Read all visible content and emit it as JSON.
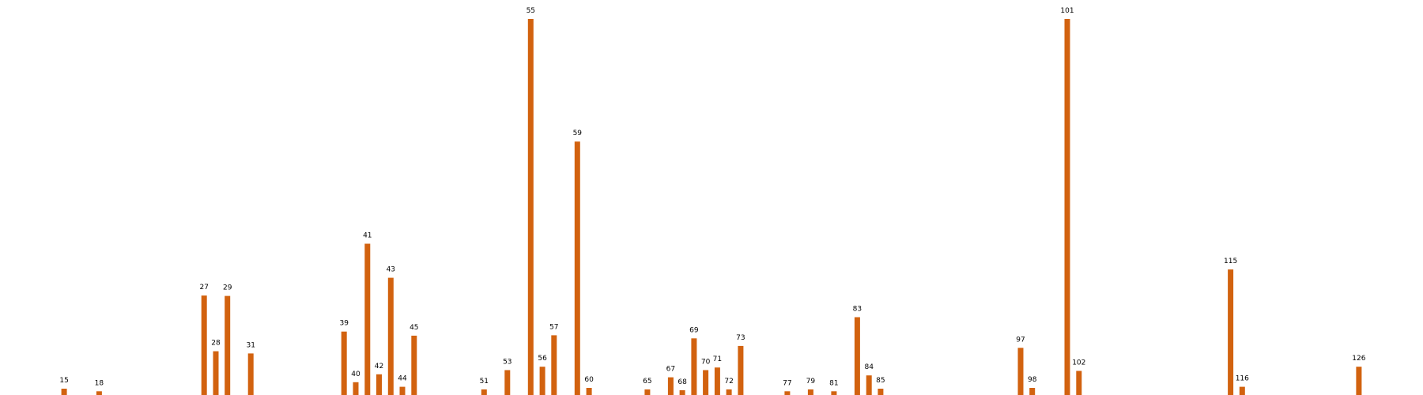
{
  "chart_data": {
    "type": "bar",
    "title": "",
    "xlabel": "",
    "ylabel": "",
    "x": [
      15,
      18,
      27,
      28,
      29,
      31,
      39,
      40,
      41,
      42,
      43,
      44,
      45,
      51,
      53,
      55,
      56,
      57,
      59,
      60,
      65,
      67,
      68,
      69,
      70,
      71,
      72,
      73,
      77,
      79,
      81,
      83,
      84,
      85,
      97,
      98,
      101,
      102,
      115,
      116,
      126
    ],
    "x_labels": [
      "15",
      "18",
      "27",
      "28",
      "29",
      "31",
      "39",
      "40",
      "41",
      "42",
      "43",
      "44",
      "45",
      "51",
      "53",
      "55",
      "56",
      "57",
      "59",
      "60",
      "65",
      "67",
      "68",
      "69",
      "70",
      "71",
      "72",
      "73",
      "77",
      "79",
      "81",
      "83",
      "84",
      "85",
      "97",
      "98",
      "101",
      "102",
      "115",
      "116",
      "126"
    ],
    "values": [
      2.3,
      1.6,
      26.9,
      12.2,
      26.8,
      11.6,
      17.4,
      4.0,
      40.6,
      6.1,
      31.6,
      2.8,
      16.3,
      2.1,
      7.2,
      100.0,
      8.1,
      16.4,
      67.6,
      2.5,
      2.1,
      5.3,
      1.9,
      15.6,
      7.2,
      7.9,
      2.1,
      13.6,
      1.6,
      2.1,
      1.6,
      21.2,
      5.8,
      2.3,
      13.1,
      2.5,
      100.0,
      7.0,
      33.8,
      2.8,
      8.1
    ],
    "ylim": [
      0,
      100
    ],
    "xlim": [
      9.5,
      131.5
    ],
    "grid": false,
    "legend": "none",
    "bar_color": "#d2620f"
  }
}
